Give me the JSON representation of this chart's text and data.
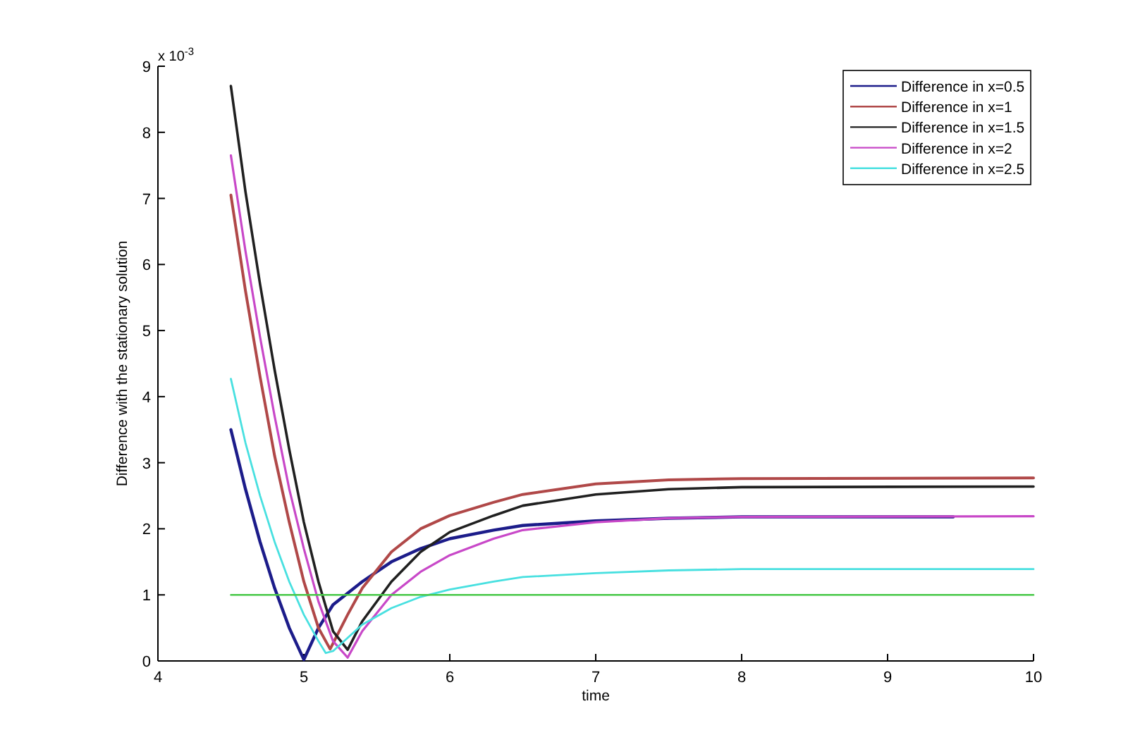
{
  "chart_data": {
    "type": "line",
    "xlabel": "time",
    "ylabel": "Difference with the stationary solution",
    "annotations": [
      "x 10$^{-3}$"
    ],
    "xlim": [
      4,
      10
    ],
    "ylim": [
      0,
      9
    ],
    "xticks": [
      4,
      5,
      6,
      7,
      8,
      9,
      10
    ],
    "yticks": [
      0,
      1,
      2,
      3,
      4,
      5,
      6,
      7,
      8,
      9
    ],
    "legend": "top right",
    "grid": false,
    "marker": "none",
    "line_style": "solid",
    "series": [
      {
        "name": "Difference in x=0.5",
        "color": "#1c1c8a",
        "x": [
          4.5,
          4.6,
          4.7,
          4.8,
          4.9,
          5.0,
          5.1,
          5.2,
          5.4,
          5.6,
          5.8,
          6,
          6.3,
          6.5,
          7,
          7.5,
          8,
          9.45
        ],
        "values": [
          3.5,
          2.6,
          1.8,
          1.1,
          0.5,
          0.02,
          0.5,
          0.85,
          1.2,
          1.5,
          1.7,
          1.85,
          1.98,
          2.05,
          2.12,
          2.16,
          2.18,
          2.18
        ]
      },
      {
        "name": "Difference in x=1",
        "color": "#b04848",
        "x": [
          4.5,
          4.6,
          4.7,
          4.8,
          4.9,
          5.0,
          5.1,
          5.18,
          5.3,
          5.4,
          5.6,
          5.8,
          6,
          6.3,
          6.5,
          7,
          7.5,
          8,
          10
        ],
        "values": [
          7.05,
          5.6,
          4.3,
          3.1,
          2.1,
          1.2,
          0.5,
          0.18,
          0.7,
          1.1,
          1.65,
          2.0,
          2.2,
          2.4,
          2.52,
          2.68,
          2.74,
          2.76,
          2.77
        ]
      },
      {
        "name": "Difference in x=1.5",
        "color": "#202020",
        "x": [
          4.5,
          4.6,
          4.7,
          4.8,
          4.9,
          5.0,
          5.1,
          5.2,
          5.3,
          5.4,
          5.6,
          5.8,
          6,
          6.3,
          6.5,
          7,
          7.5,
          8,
          10
        ],
        "values": [
          8.7,
          7.1,
          5.7,
          4.4,
          3.2,
          2.1,
          1.2,
          0.45,
          0.17,
          0.6,
          1.2,
          1.65,
          1.95,
          2.2,
          2.35,
          2.52,
          2.6,
          2.63,
          2.64
        ]
      },
      {
        "name": "Difference in x=2",
        "color": "#c848c8",
        "x": [
          4.5,
          4.6,
          4.7,
          4.8,
          4.9,
          5.0,
          5.1,
          5.2,
          5.3,
          5.4,
          5.6,
          5.8,
          6,
          6.3,
          6.5,
          7,
          7.5,
          8,
          10
        ],
        "values": [
          7.65,
          6.2,
          4.9,
          3.7,
          2.6,
          1.7,
          0.9,
          0.3,
          0.05,
          0.45,
          1.0,
          1.35,
          1.6,
          1.85,
          1.98,
          2.1,
          2.16,
          2.18,
          2.19
        ]
      },
      {
        "name": "Difference in x=2.5",
        "color": "#48e0e0",
        "x": [
          4.5,
          4.6,
          4.7,
          4.8,
          4.9,
          5.0,
          5.1,
          5.15,
          5.2,
          5.3,
          5.4,
          5.6,
          5.8,
          6,
          6.3,
          6.5,
          7,
          7.5,
          8,
          10
        ],
        "values": [
          4.27,
          3.3,
          2.5,
          1.8,
          1.2,
          0.7,
          0.3,
          0.12,
          0.15,
          0.35,
          0.55,
          0.8,
          0.97,
          1.08,
          1.2,
          1.27,
          1.33,
          1.37,
          1.39,
          1.39
        ]
      },
      {
        "color": "#48c848",
        "x": [
          4.5,
          10
        ],
        "values": [
          1,
          1
        ]
      }
    ]
  }
}
